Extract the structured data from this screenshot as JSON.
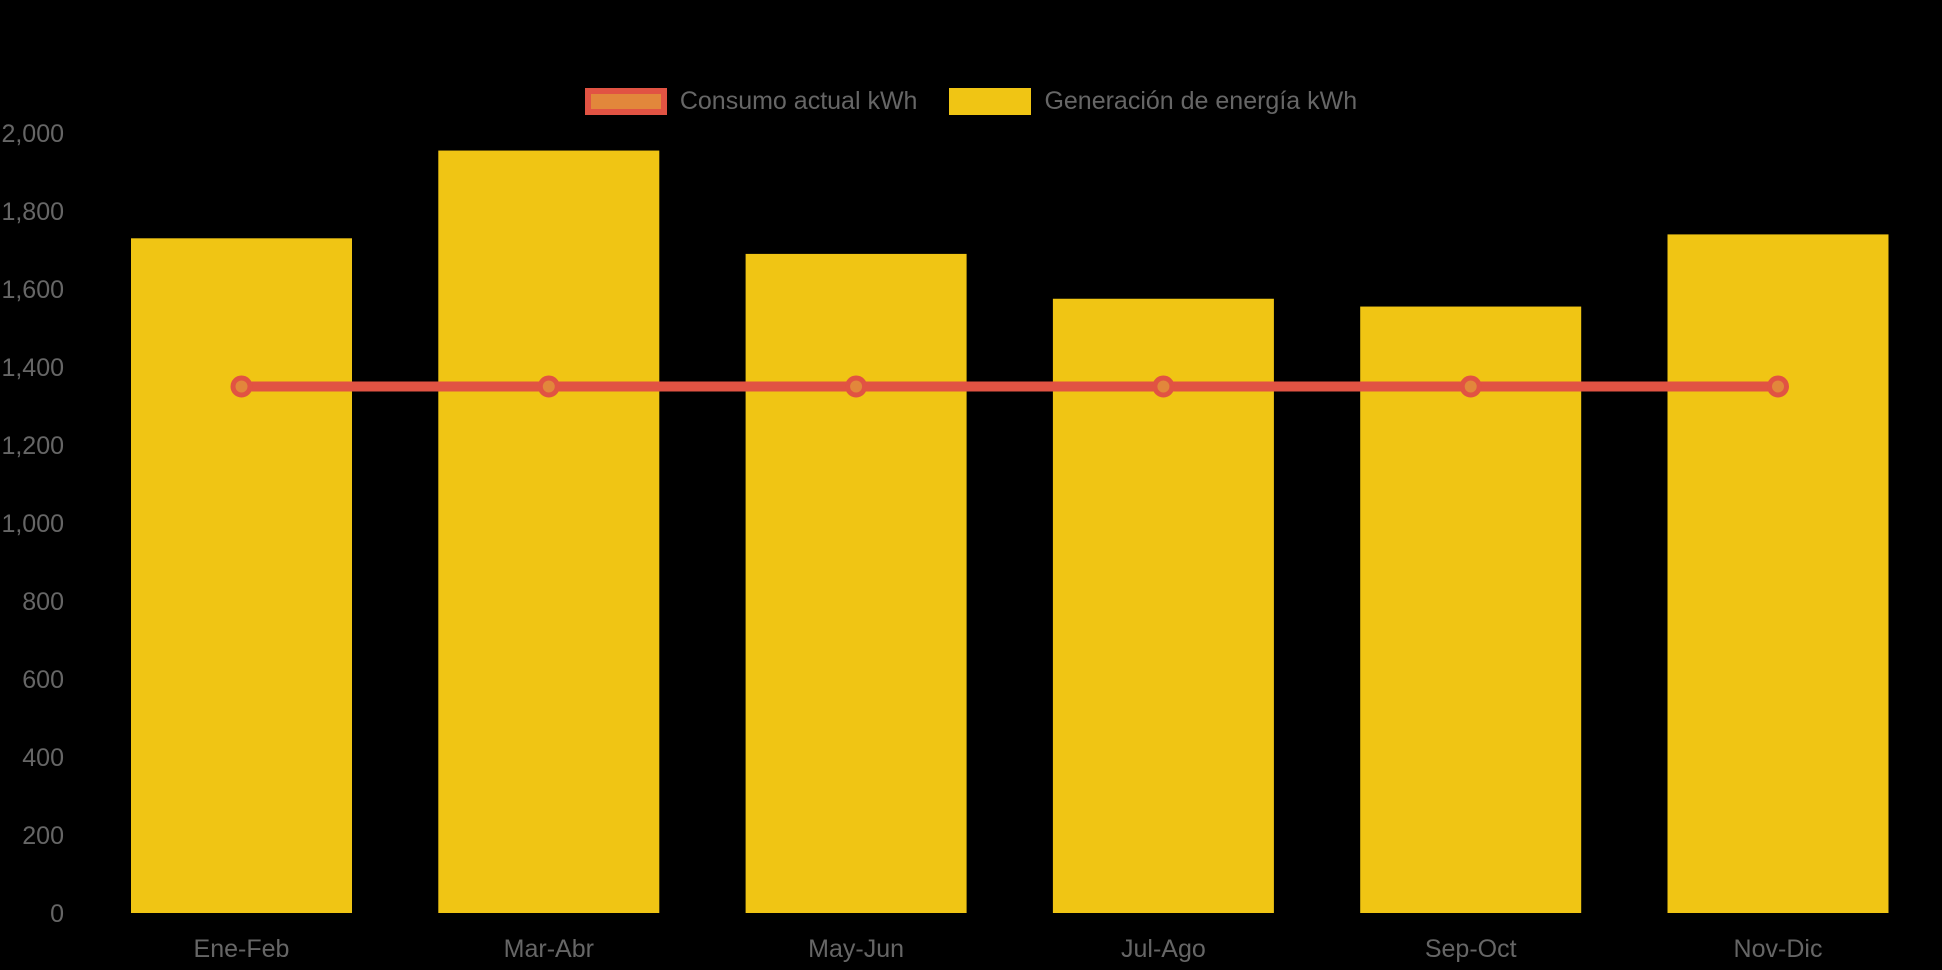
{
  "background_color": "#000000",
  "text_color": "#666666",
  "legend": {
    "position": "top-center",
    "items": [
      {
        "label": "Consumo actual kWh",
        "swatch_fill": "#e2873b",
        "swatch_border": "#e15343",
        "series_type": "line"
      },
      {
        "label": "Generación de energía kWh",
        "swatch_fill": "#f0c514",
        "swatch_border": null,
        "series_type": "bar"
      }
    ]
  },
  "chart_data": {
    "type": "bar",
    "title": "",
    "xlabel": "",
    "ylabel": "",
    "categories": [
      "Ene-Feb",
      "Mar-Abr",
      "May-Jun",
      "Jul-Ago",
      "Sep-Oct",
      "Nov-Dic"
    ],
    "series": [
      {
        "name": "Consumo actual kWh",
        "type": "line",
        "color": "#e15343",
        "marker_fill": "#e2873b",
        "values": [
          1350,
          1350,
          1350,
          1350,
          1350,
          1350
        ]
      },
      {
        "name": "Generación de energía kWh",
        "type": "bar",
        "color": "#f0c514",
        "values": [
          1730,
          1955,
          1690,
          1575,
          1555,
          1740
        ]
      }
    ],
    "ylim": [
      0,
      2000
    ],
    "ytick_step": 200,
    "ytick_labels": [
      "0",
      "200",
      "400",
      "600",
      "800",
      "1,000",
      "1,200",
      "1,400",
      "1,600",
      "1,800",
      "2,000"
    ],
    "grid": false,
    "legend_position": "top-center"
  }
}
